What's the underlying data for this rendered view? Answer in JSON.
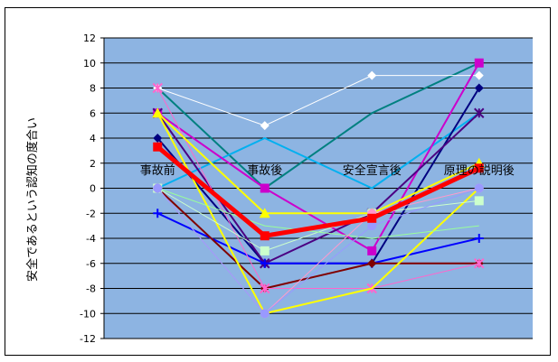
{
  "chart_data": {
    "type": "line",
    "title": "",
    "xlabel": "",
    "ylabel": "安全であるという認知の度合い",
    "categories": [
      "事故前",
      "事故後",
      "安全宣言後",
      "原理の説明後"
    ],
    "ylim": [
      -12,
      12
    ],
    "yticks": [
      12,
      10,
      8,
      6,
      4,
      2,
      0,
      -2,
      -4,
      -6,
      -8,
      -10,
      -12
    ],
    "grid": true,
    "legend": "none",
    "plot_background": "#8db4e2",
    "series": [
      {
        "color": "#008080",
        "marker": "none",
        "width": 2,
        "values": [
          8,
          0,
          6,
          10
        ]
      },
      {
        "color": "#ffffff",
        "marker": "diamond",
        "width": 1,
        "values": [
          8,
          5,
          9,
          9
        ]
      },
      {
        "color": "#00b0f0",
        "marker": "none",
        "width": 2,
        "values": [
          0,
          4,
          0,
          6
        ]
      },
      {
        "color": "#cc00cc",
        "marker": "square",
        "width": 2,
        "values": [
          6,
          0,
          -5,
          10
        ]
      },
      {
        "color": "#000080",
        "marker": "diamond",
        "width": 2,
        "values": [
          4,
          -6,
          -6,
          8
        ]
      },
      {
        "color": "#4b0082",
        "marker": "star",
        "width": 2,
        "values": [
          6,
          -6,
          -2,
          6
        ]
      },
      {
        "color": "#0000ff",
        "marker": "plus",
        "width": 2,
        "values": [
          -2,
          -6,
          -6,
          -4
        ]
      },
      {
        "color": "#800000",
        "marker": "diamond",
        "width": 2,
        "values": [
          0,
          -8,
          -6,
          -6
        ]
      },
      {
        "color": "#ff66cc",
        "marker": "star",
        "width": 1,
        "values": [
          8,
          -8,
          -8,
          -6
        ]
      },
      {
        "color": "#ffff00",
        "marker": "triangle",
        "width": 2,
        "values": [
          6,
          -2,
          -2,
          2
        ]
      },
      {
        "color": "#ffff00",
        "marker": "none",
        "width": 2,
        "values": [
          6,
          -10,
          -8,
          0
        ]
      },
      {
        "color": "#ccffcc",
        "marker": "square",
        "width": 1,
        "values": [
          0,
          -5,
          -2,
          -1
        ]
      },
      {
        "color": "#99ff99",
        "marker": "none",
        "width": 1,
        "values": [
          0,
          -3,
          -4,
          -3
        ]
      },
      {
        "color": "#ff99cc",
        "marker": "circle",
        "width": 1,
        "values": [
          0,
          -10,
          -2,
          0
        ]
      },
      {
        "color": "#9999ff",
        "marker": "circle",
        "width": 1,
        "values": [
          0,
          -10,
          -3,
          0
        ]
      },
      {
        "color": "#ff0000",
        "marker": "square",
        "width": 5,
        "values": [
          3.3,
          -3.8,
          -2.4,
          1.6
        ]
      }
    ]
  }
}
